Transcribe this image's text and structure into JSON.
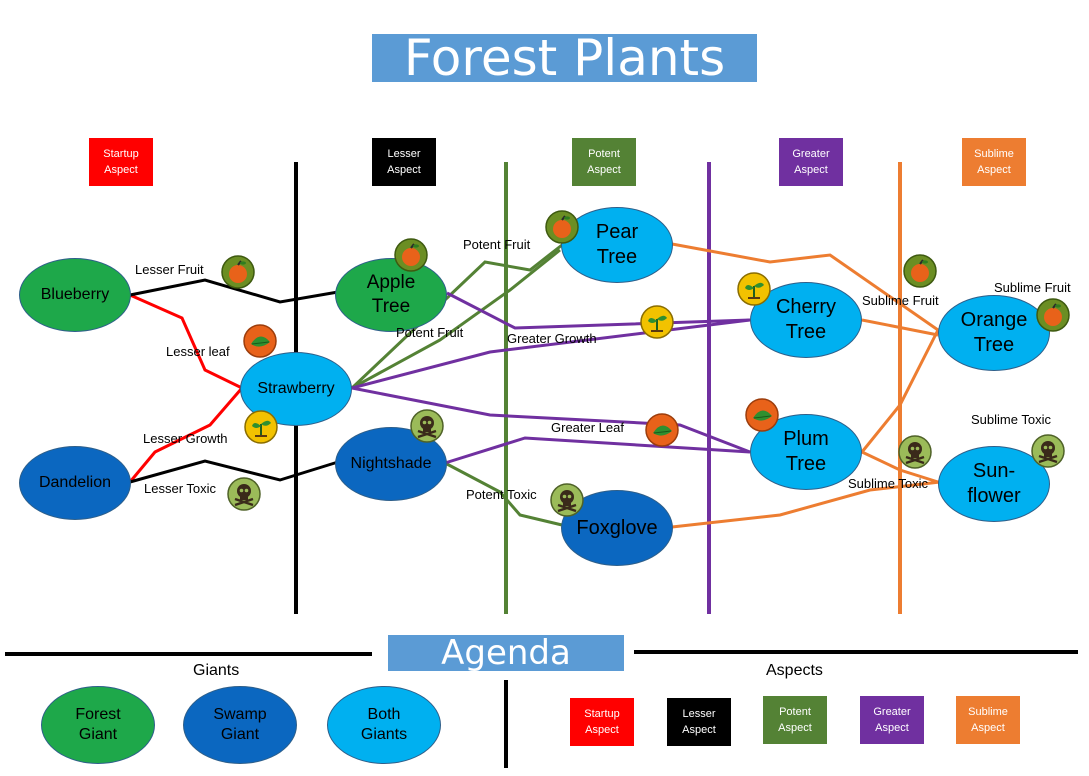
{
  "title": "Forest Plants",
  "columns": [
    {
      "label": "Startup\nAspect",
      "color": "#ff0000"
    },
    {
      "label": "Lesser\nAspect",
      "color": "#000000"
    },
    {
      "label": "Potent\nAspect",
      "color": "#548235"
    },
    {
      "label": "Greater\nAspect",
      "color": "#7030a0"
    },
    {
      "label": "Sublime\nAspect",
      "color": "#ed7d31"
    }
  ],
  "plants": {
    "blueberry": "Blueberry",
    "dandelion": "Dandelion",
    "apple": "Apple\nTree",
    "strawberry": "Strawberry",
    "nightshade": "Nightshade",
    "pear": "Pear\nTree",
    "foxglove": "Foxglove",
    "cherry": "Cherry\nTree",
    "plum": "Plum\nTree",
    "orange": "Orange\nTree",
    "sunflower": "Sun-\nflower"
  },
  "edge_labels": {
    "lesser_fruit": "Lesser Fruit",
    "lesser_leaf": "Lesser leaf",
    "lesser_growth": "Lesser Growth",
    "lesser_toxic": "Lesser Toxic",
    "potent_fruit_top": "Potent Fruit",
    "potent_fruit_mid": "Potent Fruit",
    "potent_toxic": "Potent Toxic",
    "greater_growth": "Greater Growth",
    "greater_leaf": "Greater Leaf",
    "sublime_fruit_left": "Sublime Fruit",
    "sublime_fruit_right": "Sublime Fruit",
    "sublime_toxic_top": "Sublime Toxic",
    "sublime_toxic_bottom": "Sublime Toxic"
  },
  "icons": {
    "fruit": "fruit-icon",
    "leaf": "leaf-icon",
    "growth": "sprout-icon",
    "toxic": "skull-icon"
  },
  "agenda": {
    "title": "Agenda",
    "giants_heading": "Giants",
    "aspects_heading": "Aspects",
    "giants": [
      {
        "label": "Forest\nGiant",
        "color": "#1ea84a"
      },
      {
        "label": "Swamp\nGiant",
        "color": "#0b67c0"
      },
      {
        "label": "Both\nGiants",
        "color": "#00b0f0"
      }
    ],
    "aspects": [
      {
        "label": "Startup\nAspect",
        "color": "#ff0000"
      },
      {
        "label": "Lesser\nAspect",
        "color": "#000000"
      },
      {
        "label": "Potent\nAspect",
        "color": "#548235"
      },
      {
        "label": "Greater\nAspect",
        "color": "#7030a0"
      },
      {
        "label": "Sublime\nAspect",
        "color": "#ed7d31"
      }
    ]
  },
  "colors": {
    "startup": "#ff0000",
    "lesser": "#000000",
    "potent": "#548235",
    "greater": "#7030a0",
    "sublime": "#ed7d31",
    "title_bg": "#5b9bd5"
  }
}
